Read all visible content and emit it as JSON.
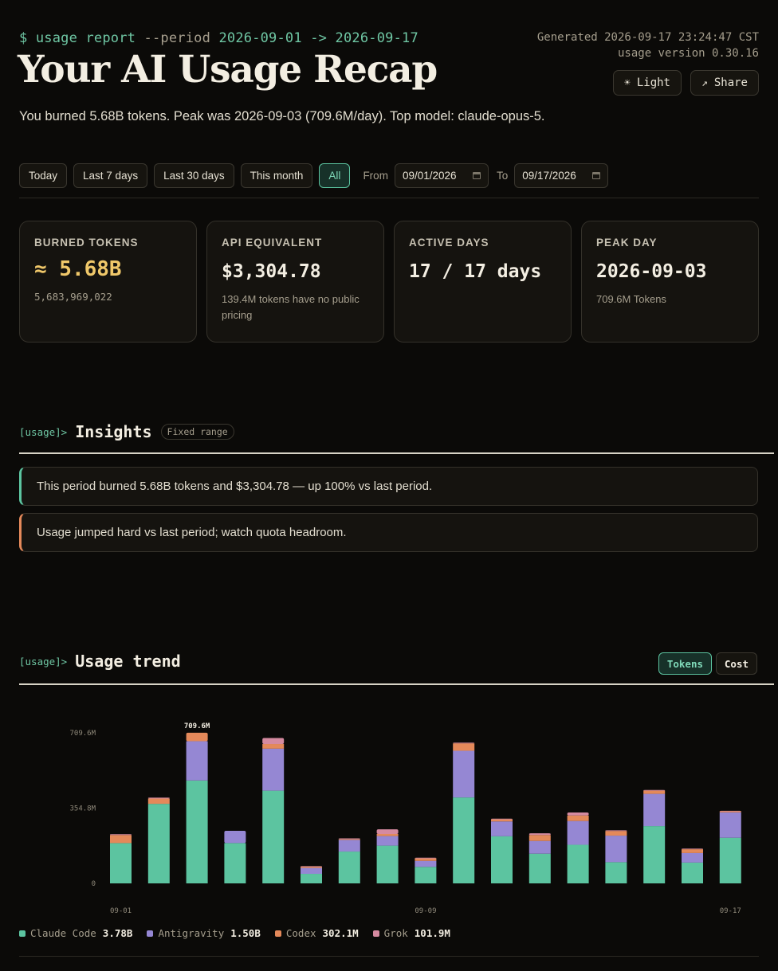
{
  "header": {
    "prompt_cmd": "$ usage report",
    "prompt_flag": "--period",
    "prompt_range": "2026-09-01 -> 2026-09-17",
    "title": "Your AI Usage Recap",
    "generated": "Generated 2026-09-17 23:24:47 CST",
    "version": "usage version 0.30.16",
    "light_label": "Light",
    "share_label": "Share",
    "light_icon": "sun-icon",
    "share_icon": "arrow-up-right-icon",
    "summary": "You burned 5.68B tokens. Peak was 2026-09-03 (709.6M/day). Top model: claude-opus-5."
  },
  "filters": {
    "presets": [
      "Today",
      "Last 7 days",
      "Last 30 days",
      "This month",
      "All"
    ],
    "active": "All",
    "from_label": "From",
    "from_value": "09/01/2026",
    "to_label": "To",
    "to_value": "09/17/2026"
  },
  "stats": {
    "burned": {
      "label": "BURNED TOKENS",
      "value": "≈ 5.68B",
      "sub": "5,683,969,022"
    },
    "api": {
      "label": "API EQUIVALENT",
      "value": "$3,304.78",
      "sub": "139.4M tokens have no public pricing"
    },
    "active": {
      "label": "ACTIVE DAYS",
      "value": "17 / 17 days"
    },
    "peak": {
      "label": "PEAK DAY",
      "value": "2026-09-03",
      "sub": "709.6M Tokens"
    }
  },
  "insights": {
    "tag": "[usage]>",
    "title": "Insights",
    "pill": "Fixed range",
    "items": [
      "This period burned 5.68B tokens and $3,304.78 — up 100% vs last period.",
      "Usage jumped hard vs last period; watch quota headroom."
    ]
  },
  "trend": {
    "tag": "[usage]>",
    "title": "Usage trend",
    "toggle": [
      "Tokens",
      "Cost"
    ],
    "active_toggle": "Tokens"
  },
  "colors": {
    "claude_code": "#5cc4a0",
    "antigravity": "#9587d3",
    "codex": "#e4895a",
    "grok": "#d58aa0",
    "accent": "#5cc4a0"
  },
  "chart_data": {
    "type": "bar",
    "stacked": true,
    "y_ticks": [
      "709.6M",
      "354.8M",
      "0"
    ],
    "x_ticks": [
      "09-01",
      "09-09",
      "09-17"
    ],
    "peak_label": "709.6M",
    "ylim": [
      0,
      709.6
    ],
    "unit": "M tokens",
    "categories": [
      "09-01",
      "09-02",
      "09-03",
      "09-04",
      "09-05",
      "09-06",
      "09-07",
      "09-08",
      "09-09",
      "09-10",
      "09-11",
      "09-12",
      "09-13",
      "09-14",
      "09-15",
      "09-16",
      "09-17"
    ],
    "series": [
      {
        "name": "Claude Code",
        "total": "3.78B",
        "color": "#5cc4a0",
        "values": [
          190,
          375,
          485,
          190,
          437,
          45,
          150,
          178,
          78,
          405,
          222,
          140,
          182,
          100,
          270,
          98,
          215
        ]
      },
      {
        "name": "Antigravity",
        "total": "1.50B",
        "color": "#9587d3",
        "values": [
          0,
          0,
          185,
          58,
          198,
          28,
          55,
          45,
          28,
          220,
          70,
          60,
          112,
          125,
          152,
          45,
          120
        ]
      },
      {
        "name": "Codex",
        "total": "302.1M",
        "color": "#e4895a",
        "values": [
          38,
          25,
          40,
          0,
          22,
          6,
          4,
          10,
          12,
          35,
          10,
          28,
          26,
          22,
          15,
          18,
          5
        ]
      },
      {
        "name": "Grok",
        "total": "101.9M",
        "color": "#d58aa0",
        "values": [
          4,
          4,
          0,
          0,
          28,
          2,
          3,
          22,
          3,
          3,
          3,
          8,
          14,
          3,
          3,
          3,
          2
        ]
      }
    ]
  }
}
